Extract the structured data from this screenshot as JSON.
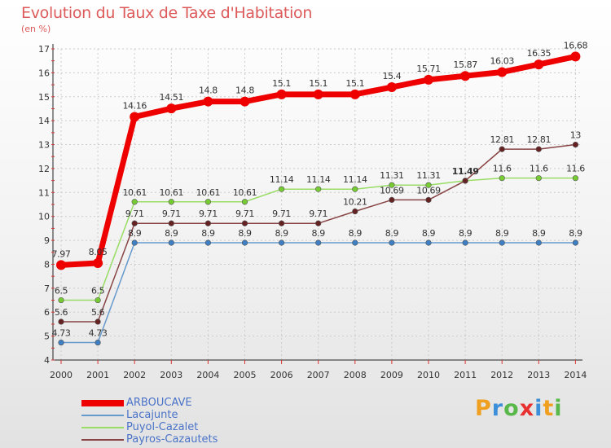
{
  "chart_data": {
    "type": "line",
    "title": "Evolution du Taux de Taxe d'Habitation",
    "ylabel": "(en %)",
    "xlabel": "",
    "categories": [
      "2000",
      "2001",
      "2002",
      "2003",
      "2004",
      "2005",
      "2006",
      "2007",
      "2008",
      "2009",
      "2010",
      "2011",
      "2012",
      "2013",
      "2014"
    ],
    "ylim": [
      4,
      17
    ],
    "yticks": [
      "4",
      "5",
      "6",
      "7",
      "8",
      "9",
      "10",
      "11",
      "12",
      "13",
      "14",
      "15",
      "16",
      "17"
    ],
    "grid": true,
    "series": [
      {
        "name": "Lacajunte",
        "color": "#6699cc",
        "marker": "#3d7fc2",
        "values": [
          4.73,
          4.73,
          8.9,
          8.9,
          8.9,
          8.9,
          8.9,
          8.9,
          8.9,
          8.9,
          8.9,
          8.9,
          8.9,
          8.9,
          8.9
        ],
        "labels": [
          "4.73",
          "4.73",
          "8.9",
          "8.9",
          "8.9",
          "8.9",
          "8.9",
          "8.9",
          "8.9",
          "8.9",
          "8.9",
          "8.9",
          "8.9",
          "8.9",
          "8.9"
        ]
      },
      {
        "name": "Puyol-Cazalet",
        "color": "#99dd66",
        "marker": "#77cc33",
        "values": [
          6.5,
          6.5,
          10.61,
          10.61,
          10.61,
          10.61,
          11.14,
          11.14,
          11.14,
          11.31,
          11.31,
          11.49,
          11.6,
          11.6,
          11.6
        ],
        "labels": [
          "6.5",
          "6.5",
          "10.61",
          "10.61",
          "10.61",
          "10.61",
          "11.14",
          "11.14",
          "11.14",
          "11.31",
          "11.31",
          "",
          "11.6",
          "11.6",
          "11.6"
        ]
      },
      {
        "name": "Payros-Cazautets",
        "color": "#884444",
        "marker": "#662222",
        "values": [
          5.6,
          5.6,
          9.71,
          9.71,
          9.71,
          9.71,
          9.71,
          9.71,
          10.21,
          10.69,
          10.69,
          11.49,
          12.81,
          12.81,
          13
        ],
        "labels": [
          "5.6",
          "5.6",
          "9.71",
          "9.71",
          "9.71",
          "9.71",
          "9.71",
          "9.71",
          "10.21",
          "10.69",
          "10.69",
          "11.49",
          "12.81",
          "12.81",
          "13"
        ]
      },
      {
        "name": "ARBOUCAVE",
        "color": "#ee0000",
        "marker": "#ee0000",
        "values": [
          7.97,
          8.05,
          14.16,
          14.51,
          14.8,
          14.8,
          15.1,
          15.1,
          15.1,
          15.4,
          15.71,
          15.87,
          16.03,
          16.35,
          16.68
        ],
        "labels": [
          "7.97",
          "8.05",
          "14.16",
          "14.51",
          "14.8",
          "14.8",
          "15.1",
          "15.1",
          "15.1",
          "15.4",
          "15.71",
          "15.87",
          "16.03",
          "16.35",
          "16.68"
        ]
      }
    ],
    "legend": [
      {
        "name": "ARBOUCAVE",
        "color": "#ee0000"
      },
      {
        "name": "Lacajunte",
        "color": "#6699cc"
      },
      {
        "name": "Puyol-Cazalet",
        "color": "#99dd66"
      },
      {
        "name": "Payros-Cazautets",
        "color": "#884444"
      }
    ]
  },
  "logo": {
    "letters": [
      "P",
      "r",
      "o",
      "x",
      "i",
      "t",
      "i"
    ],
    "colors": [
      "#f0a020",
      "#3c8fd8",
      "#59b84a",
      "#e83030",
      "#3c8fd8",
      "#f0a020",
      "#59b84a"
    ]
  }
}
